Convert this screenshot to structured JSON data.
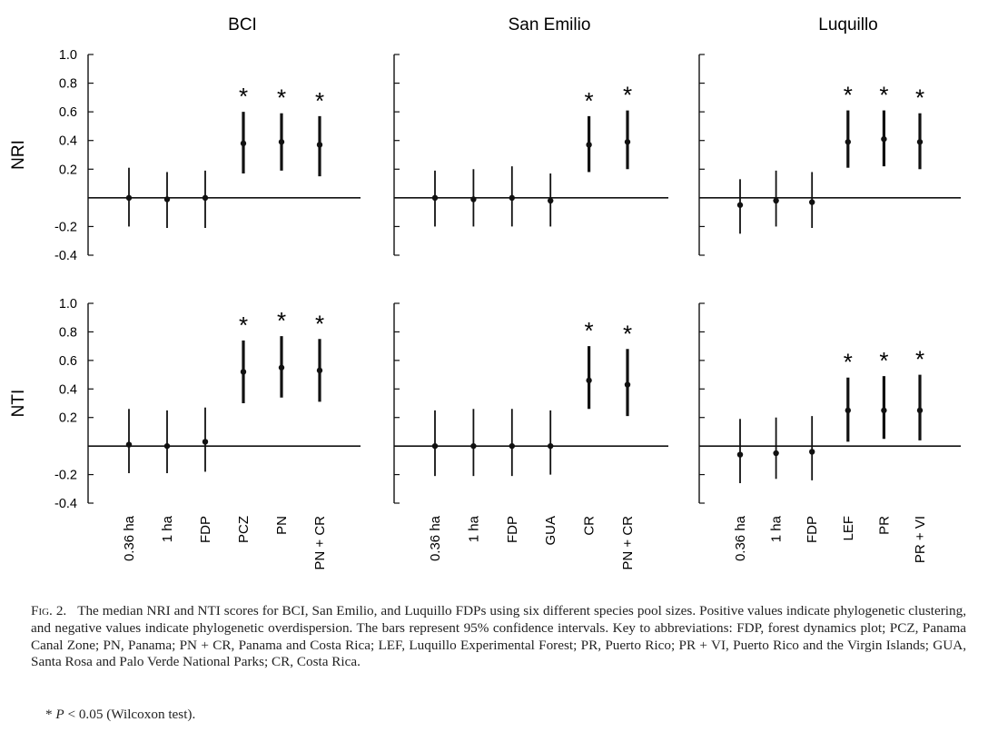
{
  "chart_data": {
    "type": "scatter",
    "description_style": "point estimates with 95% confidence interval bars, 2x3 panel grid",
    "columns": [
      "BCI",
      "San Emilio",
      "Luquillo"
    ],
    "rows": [
      "NRI",
      "NTI"
    ],
    "yticks": [
      "1.0",
      "0.8",
      "0.6",
      "0.4",
      "0.2",
      "-0.2",
      "-0.4"
    ],
    "ylim": [
      -0.4,
      1.0
    ],
    "grid": false,
    "significance_marker": "*",
    "panels": [
      {
        "title": "BCI",
        "metric": "NRI",
        "categories": [
          "0.36 ha",
          "1 ha",
          "FDP",
          "PCZ",
          "PN",
          "PN + CR"
        ],
        "median": [
          0.0,
          -0.01,
          0.0,
          0.38,
          0.39,
          0.37
        ],
        "ci_low": [
          -0.2,
          -0.21,
          -0.21,
          0.17,
          0.19,
          0.15
        ],
        "ci_high": [
          0.21,
          0.18,
          0.19,
          0.6,
          0.59,
          0.57
        ],
        "significant": [
          false,
          false,
          false,
          true,
          true,
          true
        ]
      },
      {
        "title": "San Emilio",
        "metric": "NRI",
        "categories": [
          "0.36 ha",
          "1 ha",
          "FDP",
          "GUA",
          "CR",
          "PN + CR"
        ],
        "median": [
          0.0,
          -0.01,
          0.0,
          -0.02,
          0.37,
          0.39
        ],
        "ci_low": [
          -0.2,
          -0.2,
          -0.2,
          -0.2,
          0.18,
          0.2
        ],
        "ci_high": [
          0.19,
          0.2,
          0.22,
          0.17,
          0.57,
          0.61
        ],
        "significant": [
          false,
          false,
          false,
          false,
          true,
          true
        ]
      },
      {
        "title": "Luquillo",
        "metric": "NRI",
        "categories": [
          "0.36 ha",
          "1 ha",
          "FDP",
          "LEF",
          "PR",
          "PR + VI"
        ],
        "median": [
          -0.05,
          -0.02,
          -0.03,
          0.39,
          0.41,
          0.39
        ],
        "ci_low": [
          -0.25,
          -0.2,
          -0.21,
          0.21,
          0.22,
          0.2
        ],
        "ci_high": [
          0.13,
          0.19,
          0.18,
          0.61,
          0.61,
          0.59
        ],
        "significant": [
          false,
          false,
          false,
          true,
          true,
          true
        ]
      },
      {
        "title": "BCI",
        "metric": "NTI",
        "categories": [
          "0.36 ha",
          "1 ha",
          "FDP",
          "PCZ",
          "PN",
          "PN + CR"
        ],
        "median": [
          0.01,
          0.0,
          0.03,
          0.52,
          0.55,
          0.53
        ],
        "ci_low": [
          -0.19,
          -0.19,
          -0.18,
          0.3,
          0.34,
          0.31
        ],
        "ci_high": [
          0.26,
          0.25,
          0.27,
          0.74,
          0.77,
          0.75
        ],
        "significant": [
          false,
          false,
          false,
          true,
          true,
          true
        ]
      },
      {
        "title": "San Emilio",
        "metric": "NTI",
        "categories": [
          "0.36 ha",
          "1 ha",
          "FDP",
          "GUA",
          "CR",
          "PN + CR"
        ],
        "median": [
          0.0,
          0.0,
          0.0,
          0.0,
          0.46,
          0.43
        ],
        "ci_low": [
          -0.21,
          -0.21,
          -0.21,
          -0.2,
          0.26,
          0.21
        ],
        "ci_high": [
          0.25,
          0.26,
          0.26,
          0.25,
          0.7,
          0.68
        ],
        "significant": [
          false,
          false,
          false,
          false,
          true,
          true
        ]
      },
      {
        "title": "Luquillo",
        "metric": "NTI",
        "categories": [
          "0.36 ha",
          "1 ha",
          "FDP",
          "LEF",
          "PR",
          "PR + VI"
        ],
        "median": [
          -0.06,
          -0.05,
          -0.04,
          0.25,
          0.25,
          0.25
        ],
        "ci_low": [
          -0.26,
          -0.23,
          -0.24,
          0.03,
          0.05,
          0.04
        ],
        "ci_high": [
          0.19,
          0.2,
          0.21,
          0.48,
          0.49,
          0.5
        ],
        "significant": [
          false,
          false,
          false,
          true,
          true,
          true
        ]
      }
    ]
  },
  "caption": {
    "label": "Fig. 2.",
    "text": "The median NRI and NTI scores for BCI, San Emilio, and Luquillo FDPs using six different species pool sizes. Positive values indicate phylogenetic clustering, and negative values indicate phylogenetic overdispersion. The bars represent 95% confidence intervals. Key to abbreviations: FDP, forest dynamics plot; PCZ, Panama Canal Zone; PN, Panama; PN + CR, Panama and Costa Rica; LEF, Luquillo Experimental Forest; PR, Puerto Rico; PR + VI, Puerto Rico and the Virgin Islands; GUA, Santa Rosa and Palo Verde National Parks; CR, Costa Rica.",
    "note_symbol": "* ",
    "note_p": "P",
    "note_rest": " < 0.05 (Wilcoxon test)."
  }
}
